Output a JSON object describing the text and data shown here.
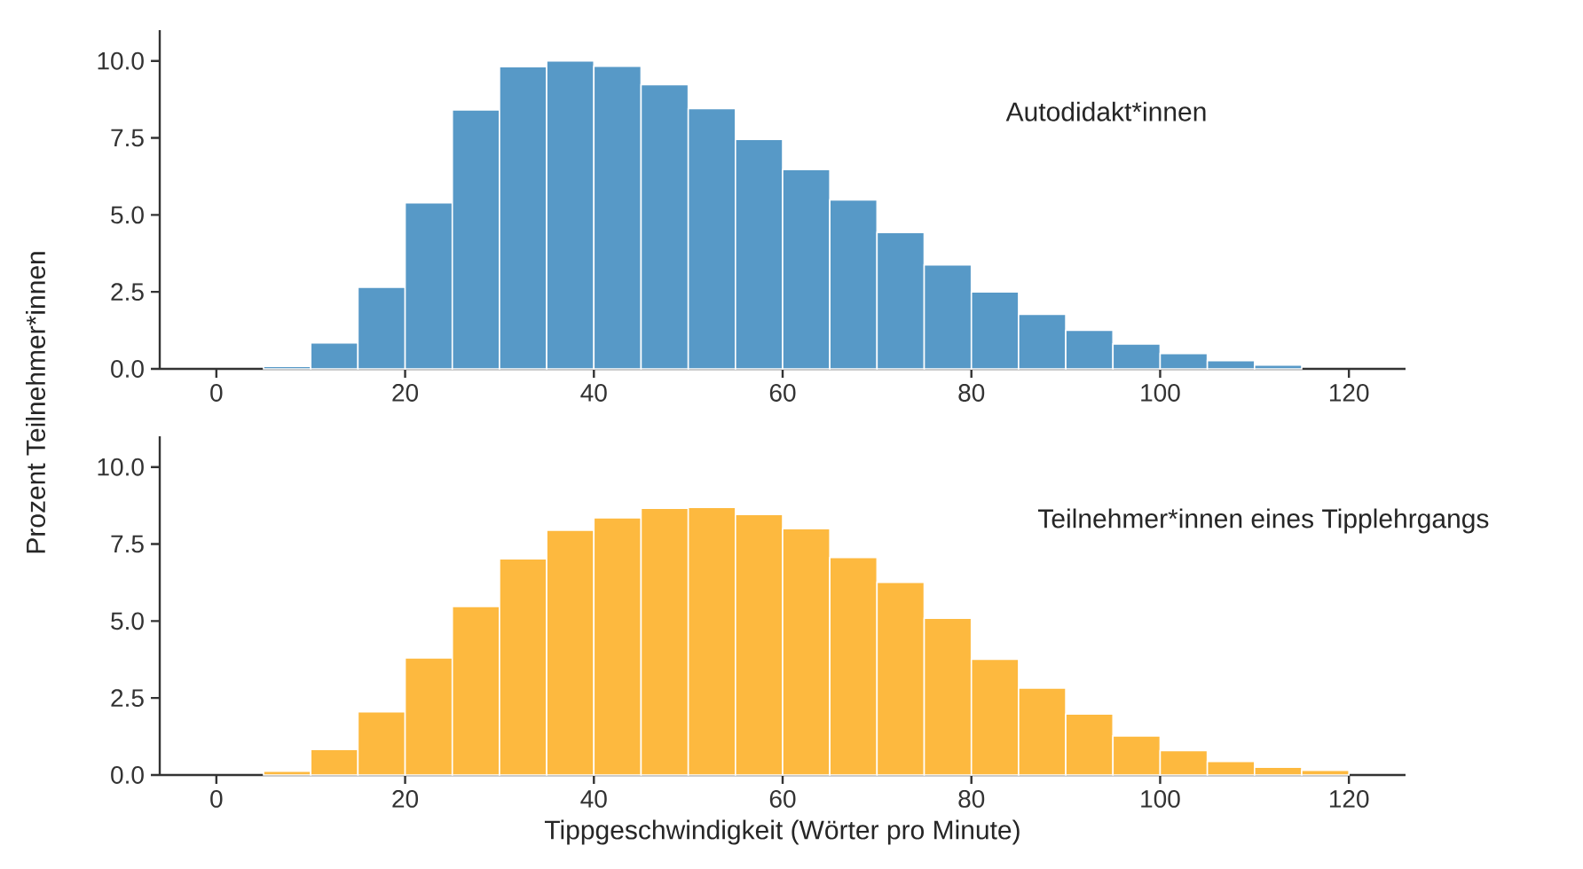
{
  "chart_data": [
    {
      "type": "histogram",
      "ylabel": "Prozent Teilnehmer*innen",
      "bins": [
        5,
        10,
        15,
        20,
        25,
        30,
        35,
        40,
        45,
        50,
        55,
        60,
        65,
        70,
        75,
        80,
        85,
        90,
        95,
        100,
        105,
        110,
        115
      ],
      "series": [
        {
          "name": "Autodidakt*innen",
          "color": "#5799c7",
          "values": [
            0.08,
            0.84,
            2.65,
            5.39,
            8.41,
            9.81,
            10.0,
            9.83,
            9.23,
            8.45,
            7.45,
            6.47,
            5.49,
            4.43,
            3.38,
            2.5,
            1.77,
            1.25,
            0.81,
            0.5,
            0.27,
            0.12
          ]
        }
      ],
      "xlim": [
        -6,
        126
      ],
      "xticks": [
        0,
        20,
        40,
        60,
        80,
        100,
        120
      ],
      "ylim": [
        0,
        11
      ],
      "yticks": [
        {
          "value": 0,
          "label": "0.0"
        },
        {
          "value": 2.5,
          "label": "2.5"
        },
        {
          "value": 5,
          "label": "5.0"
        },
        {
          "value": 7.5,
          "label": "7.5"
        },
        {
          "value": 10,
          "label": "10.0"
        }
      ]
    },
    {
      "type": "histogram",
      "xlabel": "Tippgeschwindigkeit (Wörter pro Minute)",
      "bins": [
        5,
        10,
        15,
        20,
        25,
        30,
        35,
        40,
        45,
        50,
        55,
        60,
        65,
        70,
        75,
        80,
        85,
        90,
        95,
        100,
        105,
        110,
        115,
        120
      ],
      "series": [
        {
          "name": "Teilnehmer*innen eines Tipplehrgangs",
          "color": "#fdb93f",
          "values": [
            0.12,
            0.83,
            2.05,
            3.8,
            5.47,
            7.02,
            7.95,
            8.35,
            8.66,
            8.69,
            8.46,
            8.0,
            7.06,
            6.26,
            5.09,
            3.76,
            2.82,
            1.98,
            1.27,
            0.79,
            0.44,
            0.25,
            0.15
          ]
        }
      ],
      "xlim": [
        -6,
        126
      ],
      "xticks": [
        0,
        20,
        40,
        60,
        80,
        100,
        120
      ],
      "ylim": [
        0,
        11
      ],
      "yticks": [
        {
          "value": 0,
          "label": "0.0"
        },
        {
          "value": 2.5,
          "label": "2.5"
        },
        {
          "value": 5,
          "label": "5.0"
        },
        {
          "value": 7.5,
          "label": "7.5"
        },
        {
          "value": 10,
          "label": "10.0"
        }
      ]
    }
  ]
}
